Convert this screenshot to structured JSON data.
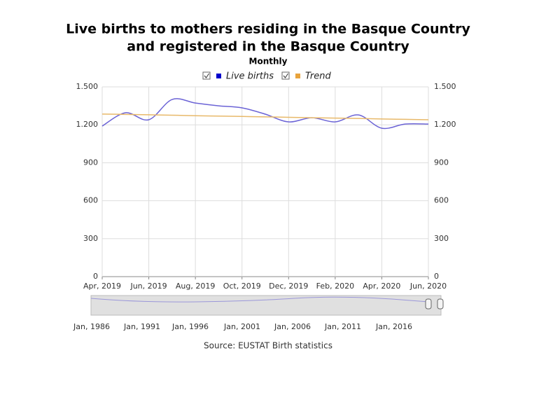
{
  "chart_data": {
    "type": "line",
    "title_lines": [
      "Live births to mothers residing in the Basque Country",
      "and registered in the Basque Country"
    ],
    "subtitle": "Monthly",
    "categories": [
      "Apr, 2019",
      null,
      "Jun, 2019",
      null,
      "Aug, 2019",
      null,
      "Oct, 2019",
      null,
      "Dec, 2019",
      null,
      "Feb, 2020",
      null,
      "Apr, 2020",
      null,
      "Jun, 2020"
    ],
    "series": [
      {
        "name": "Live births",
        "color": "#6b63d6",
        "legend_color": "#0000cc",
        "values": [
          1190,
          1295,
          1240,
          1400,
          1372,
          1350,
          1334,
          1284,
          1223,
          1256,
          1223,
          1278,
          1173,
          1206,
          1206
        ]
      },
      {
        "name": "Trend",
        "color": "#e8b96a",
        "legend_color": "#e8a33c",
        "values": [
          1285,
          1282,
          1279,
          1276,
          1272,
          1269,
          1266,
          1263,
          1259,
          1256,
          1253,
          1250,
          1246,
          1243,
          1240
        ]
      }
    ],
    "ylim": [
      0,
      1500
    ],
    "yticks": [
      0,
      300,
      600,
      900,
      {
        "value": 1200,
        "label": "1.200"
      },
      {
        "value": 1500,
        "label": "1.500"
      }
    ],
    "grid": true,
    "navigator_labels": [
      "Jan, 1986",
      "Jan, 1991",
      "Jan, 1996",
      "Jan, 2001",
      "Jan, 2006",
      "Jan, 2011",
      "Jan, 2016"
    ],
    "source": "Source: EUSTAT Birth statistics"
  }
}
